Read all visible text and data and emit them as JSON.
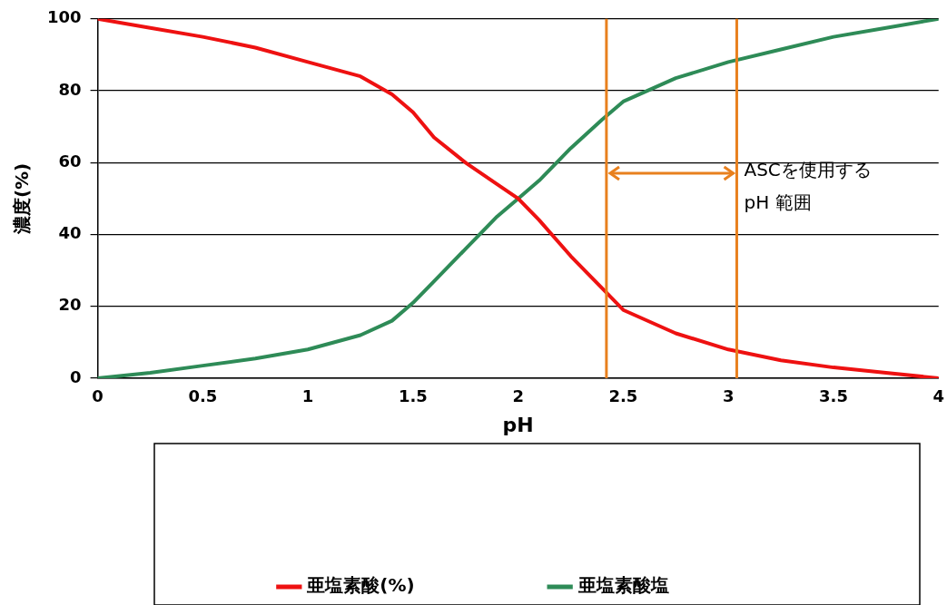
{
  "chart_data": {
    "type": "line",
    "xlabel": "pH",
    "ylabel": "濃度(%)",
    "xlim": [
      0,
      4
    ],
    "xticks": [
      0,
      0.5,
      1,
      1.5,
      2,
      2.5,
      3,
      3.5,
      4
    ],
    "ylim": [
      0,
      100
    ],
    "yticks": [
      0,
      20,
      40,
      60,
      80,
      100
    ],
    "x": [
      0,
      0.25,
      0.5,
      0.75,
      1,
      1.25,
      1.4,
      1.5,
      1.6,
      1.75,
      1.9,
      2,
      2.1,
      2.25,
      2.4,
      2.5,
      2.75,
      3,
      3.25,
      3.5,
      3.75,
      4
    ],
    "series": [
      {
        "name": "亜塩素酸(%)",
        "color": "#ee1111",
        "values": [
          100,
          97.5,
          95,
          92,
          88,
          84,
          79,
          74,
          67,
          60,
          54,
          50,
          44,
          34,
          25,
          19,
          12.5,
          8,
          5,
          3,
          1.5,
          0
        ]
      },
      {
        "name": "亜塩素酸塩",
        "color": "#2e8b57",
        "values": [
          0,
          1.5,
          3.5,
          5.5,
          8,
          12,
          16,
          21,
          27,
          36,
          45,
          50,
          55,
          64,
          72,
          77,
          83.5,
          88,
          91.5,
          95,
          97.5,
          100
        ]
      }
    ],
    "ref_lines": [
      {
        "axis": "x",
        "value": 2.42,
        "color": "#e8801e"
      },
      {
        "axis": "x",
        "value": 3.04,
        "color": "#e8801e"
      }
    ],
    "annotations": [
      {
        "text": "ASCを使用する pH 範囲",
        "x": 3.04,
        "y": 57
      }
    ],
    "grid": "y",
    "legend": "bottom",
    "marker": "none",
    "line_style": "solid"
  }
}
